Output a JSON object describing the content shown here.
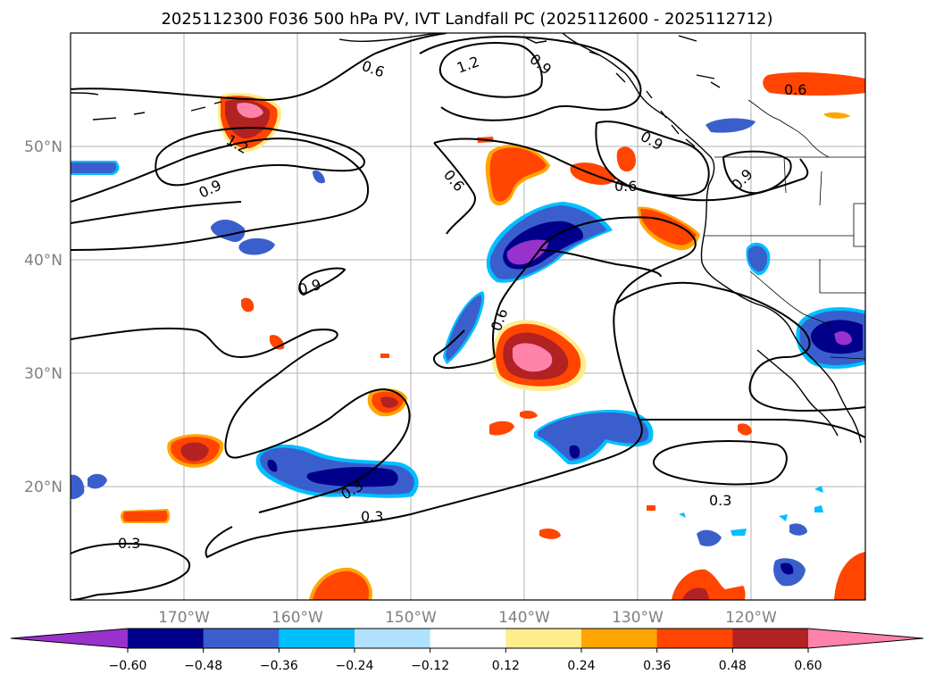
{
  "title": "2025112300 F036 500 hPa PV, IVT Landfall PC (2025112600 - 2025112712)",
  "lon_ticks": [
    "170°W",
    "160°W",
    "150°W",
    "140°W",
    "130°W",
    "120°W"
  ],
  "lat_ticks": [
    "50°N",
    "40°N",
    "30°N",
    "20°N"
  ],
  "map_extent": {
    "lon": [
      -180,
      -110
    ],
    "lat": [
      10,
      60
    ]
  },
  "colorbar": {
    "ticks": [
      "−0.60",
      "−0.48",
      "−0.36",
      "−0.24",
      "−0.12",
      "0.12",
      "0.24",
      "0.36",
      "0.48",
      "0.60"
    ],
    "colors": [
      "#9932cc",
      "#00008b",
      "#3a5fcd",
      "#00bfff",
      "#b0e2ff",
      "#ffffff",
      "#ffec8b",
      "#ffa500",
      "#ff4500",
      "#b22222",
      "#ff82ab"
    ]
  },
  "contour_labels": [
    "0.6",
    "1.2",
    "0.9",
    "1.2",
    "0.9",
    "0.9",
    "0.6",
    "0.6",
    "0.9",
    "0.6",
    "0.9",
    "0.6",
    "0.3",
    "0.3",
    "0.3",
    "0.3"
  ]
}
